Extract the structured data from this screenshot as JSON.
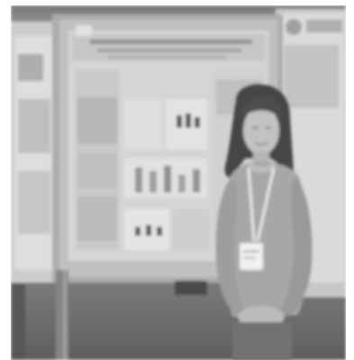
{
  "photo": {
    "mode": "grayscale",
    "subject": "person-standing-beside-poster",
    "palette": {
      "frame": "#ffffff",
      "ceiling": "#8a8a8a",
      "floor": "#5c5c5c",
      "board": "#b8b8b8",
      "poster": "#d4d4d4",
      "posterBlock": "#9a9a9a",
      "hair": "#3a3a3a",
      "skin": "#b5b5b5",
      "sweater": "#9d9d9d",
      "pants": "#6a6a6a",
      "lanyard": "#e6e6e6",
      "badge": "#efefef"
    }
  }
}
